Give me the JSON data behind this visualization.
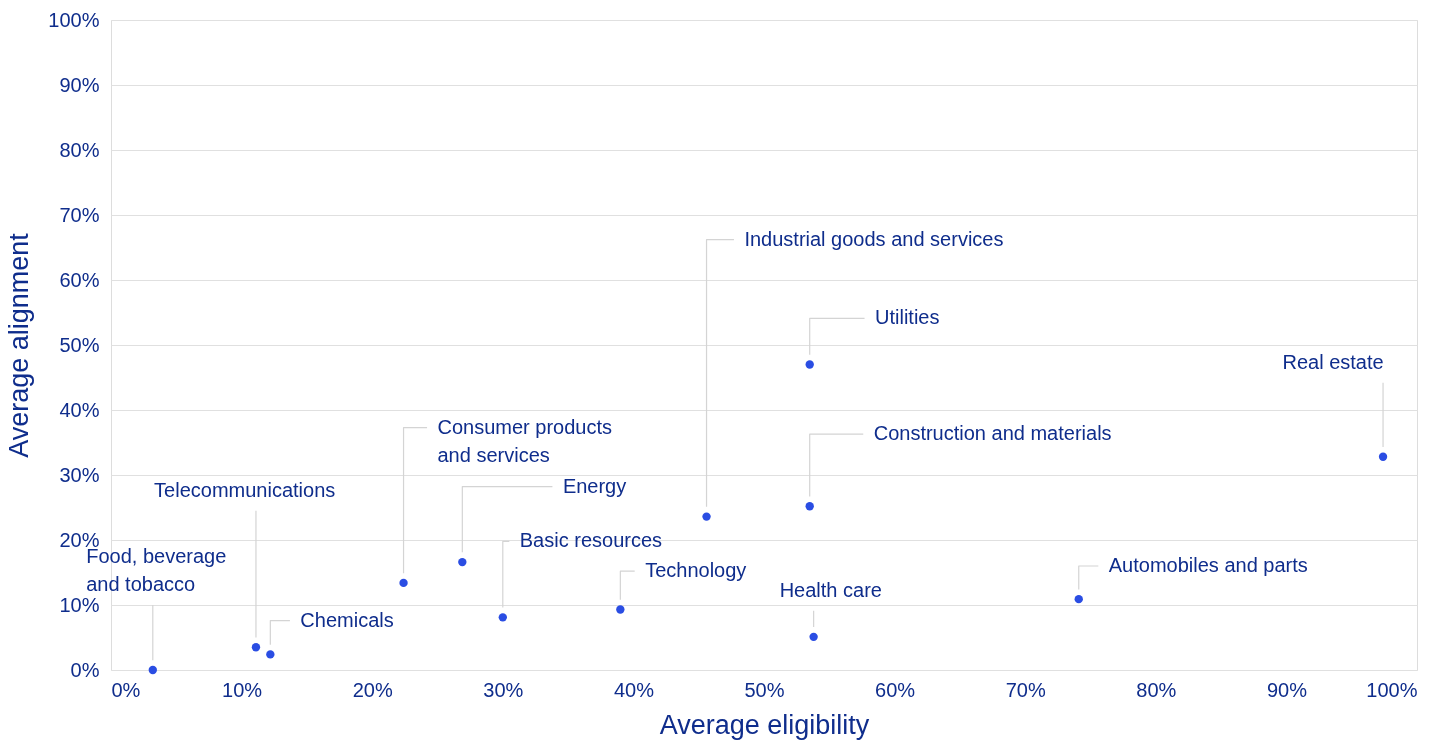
{
  "chart_data": {
    "type": "scatter",
    "xlabel": "Average eligibility",
    "ylabel": "Average alignment",
    "series": [
      {
        "name": "Food, beverage\nand tobacco",
        "color": "#2a4de3",
        "x": [
          3.2
        ],
        "values": [
          0.0
        ]
      },
      {
        "name": "Telecommunications",
        "color": "#2a4de3",
        "x": [
          11.1
        ],
        "values": [
          3.5
        ]
      },
      {
        "name": "Chemicals",
        "color": "#2a4de3",
        "x": [
          12.2
        ],
        "values": [
          2.4
        ]
      },
      {
        "name": "Consumer products\nand services",
        "color": "#2a4de3",
        "x": [
          22.4
        ],
        "values": [
          13.4
        ]
      },
      {
        "name": "Energy",
        "color": "#2a4de3",
        "x": [
          26.9
        ],
        "values": [
          16.6
        ]
      },
      {
        "name": "Basic resources",
        "color": "#2a4de3",
        "x": [
          30.0
        ],
        "values": [
          8.1
        ]
      },
      {
        "name": "Technology",
        "color": "#2a4de3",
        "x": [
          39.0
        ],
        "values": [
          9.3
        ]
      },
      {
        "name": "Industrial goods and services",
        "color": "#2a4de3",
        "x": [
          45.6
        ],
        "values": [
          23.6
        ]
      },
      {
        "name": "Utilities",
        "color": "#2a4de3",
        "x": [
          53.5
        ],
        "values": [
          47.0
        ]
      },
      {
        "name": "Construction and materials",
        "color": "#2a4de3",
        "x": [
          53.5
        ],
        "values": [
          25.2
        ]
      },
      {
        "name": "Health care",
        "color": "#2a4de3",
        "x": [
          53.8
        ],
        "values": [
          5.1
        ]
      },
      {
        "name": "Automobiles and parts",
        "color": "#2a4de3",
        "x": [
          74.1
        ],
        "values": [
          10.9
        ]
      },
      {
        "name": "Real estate",
        "color": "#2a4de3",
        "x": [
          97.4
        ],
        "values": [
          32.8
        ]
      }
    ],
    "xlim": [
      0,
      100
    ],
    "ylim": [
      0,
      100
    ],
    "xticks": [
      {
        "value": 0,
        "label": "0%"
      },
      {
        "value": 10,
        "label": "10%"
      },
      {
        "value": 20,
        "label": "20%"
      },
      {
        "value": 30,
        "label": "30%"
      },
      {
        "value": 40,
        "label": "40%"
      },
      {
        "value": 50,
        "label": "50%"
      },
      {
        "value": 60,
        "label": "60%"
      },
      {
        "value": 70,
        "label": "70%"
      },
      {
        "value": 80,
        "label": "80%"
      },
      {
        "value": 90,
        "label": "90%"
      },
      {
        "value": 100,
        "label": "100%"
      }
    ],
    "yticks": [
      {
        "value": 0,
        "label": "0%"
      },
      {
        "value": 10,
        "label": "10%"
      },
      {
        "value": 20,
        "label": "20%"
      },
      {
        "value": 30,
        "label": "30%"
      },
      {
        "value": 40,
        "label": "40%"
      },
      {
        "value": 50,
        "label": "50%"
      },
      {
        "value": 60,
        "label": "60%"
      },
      {
        "value": 70,
        "label": "70%"
      },
      {
        "value": 80,
        "label": "80%"
      },
      {
        "value": 90,
        "label": "90%"
      },
      {
        "value": 100,
        "label": "100%"
      }
    ],
    "grid": "y",
    "marker": "circle",
    "legend": false
  }
}
